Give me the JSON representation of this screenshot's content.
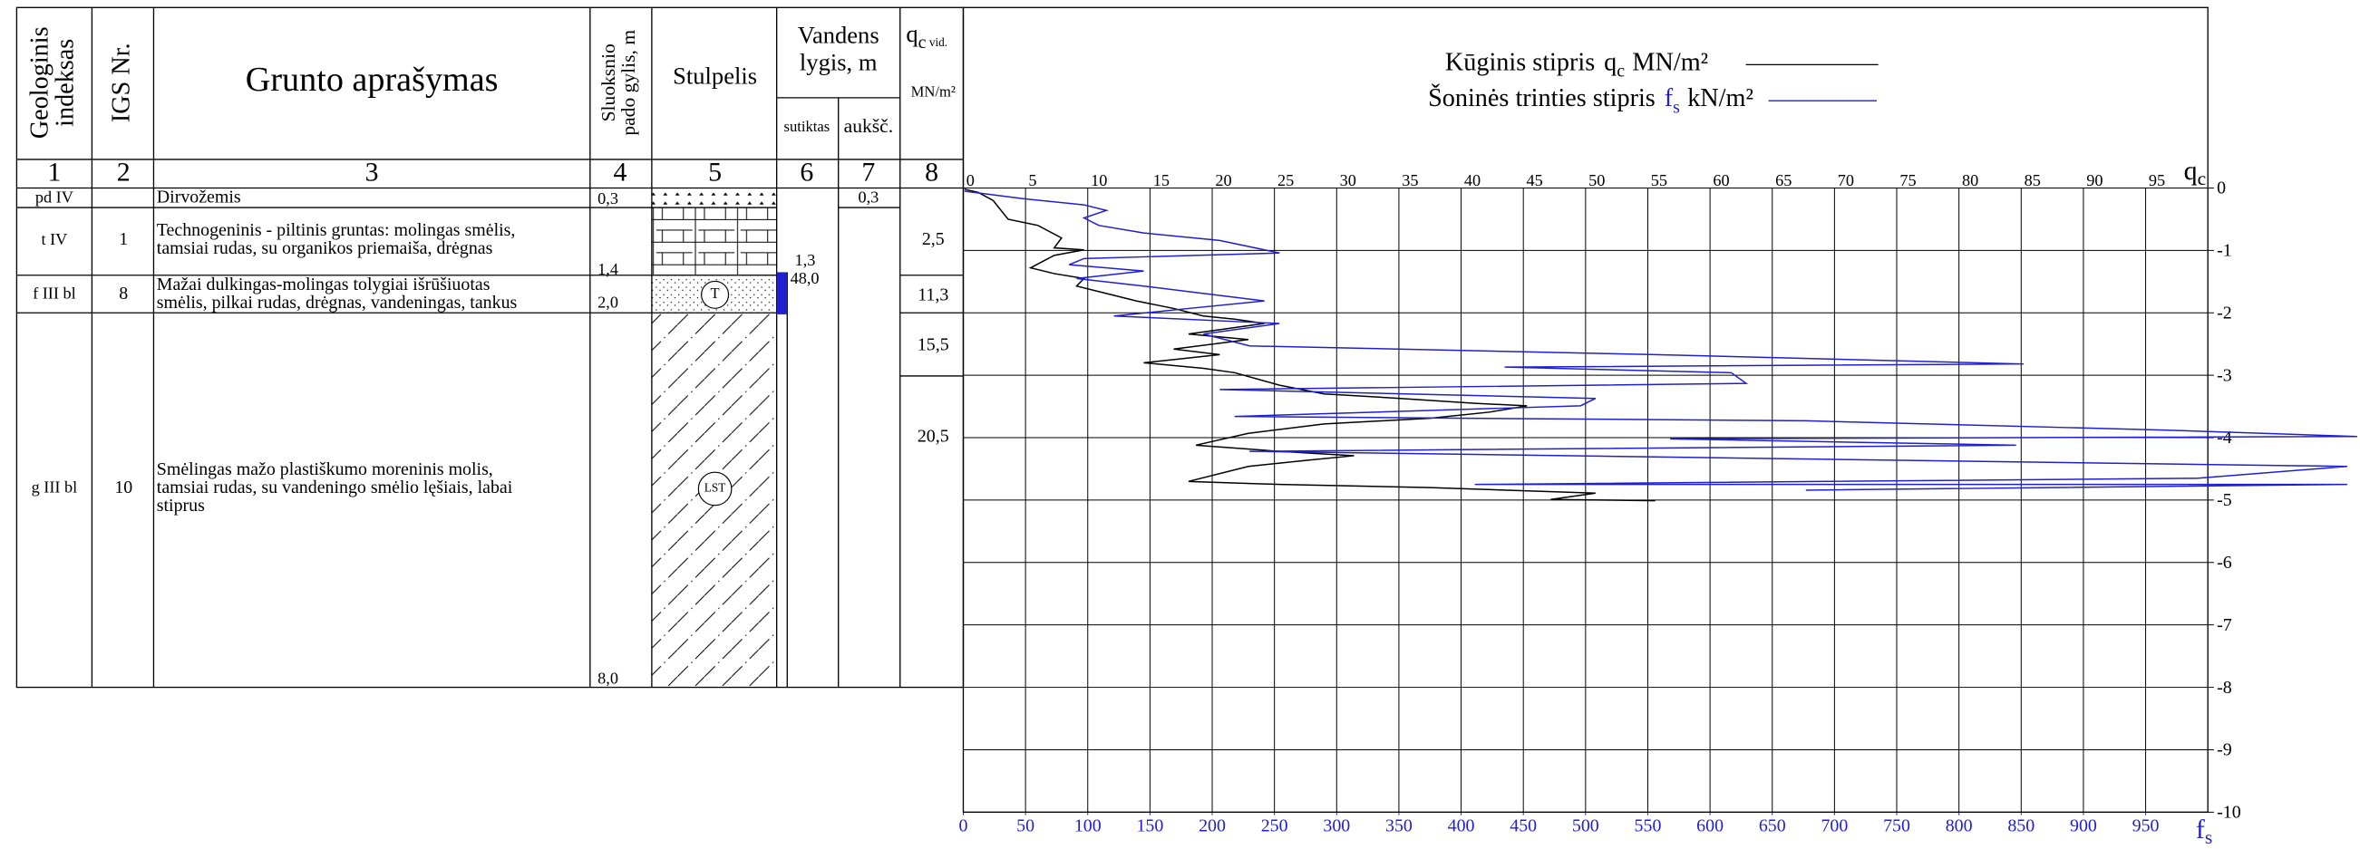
{
  "table": {
    "headers": {
      "index": [
        "Geologinis",
        "indeksas"
      ],
      "igs": "IGS Nr.",
      "description": "Grunto aprašymas",
      "depth": [
        "Sluoksnio",
        "pado gylis, m"
      ],
      "column": "Stulpelis",
      "water": [
        "Vandens",
        "lygis, m"
      ],
      "water_found": "sutiktas",
      "water_level": "aukšč.",
      "qc_symbol": "q",
      "qc_subscript": "c",
      "qc_note": "vid.",
      "qc_unit": "MN/m²"
    },
    "column_numbers": [
      "1",
      "2",
      "3",
      "4",
      "5",
      "6",
      "7",
      "8"
    ],
    "rows": [
      {
        "index": "pd IV",
        "igs": "",
        "description": [
          "Dirvožemis"
        ],
        "depth": "0,3"
      },
      {
        "index": "t IV",
        "igs": "1",
        "description": [
          "Technogeninis - piltinis gruntas: molingas smėlis,",
          "tamsiai rudas, su organikos priemaiša, drėgnas"
        ],
        "depth": "1,4"
      },
      {
        "index": "f III bl",
        "igs": "8",
        "description": [
          "Mažai dulkingas-molingas tolygiai išrūšiuotas",
          "smėlis, pilkai rudas, drėgnas, vandeningas, tankus"
        ],
        "depth": "2,0",
        "symbol": "T"
      },
      {
        "index": "g III bl",
        "igs": "10",
        "description": [
          "Smėlingas mažo plastiškumo moreninis molis,",
          "tamsiai rudas, su vandeningo smėlio lęšiais, labai",
          "stiprus"
        ],
        "depth": "8,0",
        "symbol": "LST"
      }
    ],
    "water_found": [
      "1,3",
      "48,0"
    ],
    "water_level": "0,3",
    "qc_avg": [
      "2,5",
      "11,3",
      "15,5",
      "20,5"
    ]
  },
  "chart_data": {
    "type": "line",
    "x_label": {
      "symbol": "q",
      "subscript": "c"
    },
    "x2_label": {
      "symbol": "f",
      "subscript": "s"
    },
    "xlim": [
      0,
      100
    ],
    "xticks": [
      0,
      5,
      10,
      15,
      20,
      25,
      30,
      35,
      40,
      45,
      50,
      55,
      60,
      65,
      70,
      75,
      80,
      85,
      90,
      95
    ],
    "x2lim": [
      0,
      1000
    ],
    "x2ticks": [
      0,
      50,
      100,
      150,
      200,
      250,
      300,
      350,
      400,
      450,
      500,
      550,
      600,
      650,
      700,
      750,
      800,
      850,
      900,
      950
    ],
    "ylim": [
      0,
      -10
    ],
    "yticks": [
      0,
      -1,
      -2,
      -3,
      -4,
      -5,
      -6,
      -7,
      -8,
      -9,
      -10
    ],
    "grid": true,
    "series": [
      {
        "name": "Kūginis stipris",
        "symbol": "q",
        "subscript": "c",
        "unit": "MN/m²",
        "color": "#000000",
        "x": [
          0.1,
          1.2,
          2.4,
          3.6,
          6.0,
          7.9,
          7.3,
          9.7,
          7.3,
          5.4,
          7.3,
          9.7,
          9.1,
          11.5,
          13.9,
          16.9,
          19.3,
          21.8,
          24.2,
          18.1,
          22.9,
          16.9,
          20.6,
          14.5,
          19.3,
          21.8,
          25.4,
          29.0,
          35.1,
          41.1,
          45.3,
          42.3,
          37.5,
          29.0,
          22.9,
          18.7,
          25.4,
          31.4,
          27.8,
          22.9,
          18.1,
          25.4,
          37.5,
          50.8,
          47.2,
          55.6
        ],
        "values": [
          -0.02,
          -0.07,
          -0.2,
          -0.5,
          -0.6,
          -0.8,
          -0.96,
          -0.99,
          -1.08,
          -1.28,
          -1.37,
          -1.45,
          -1.57,
          -1.69,
          -1.81,
          -1.93,
          -2.05,
          -2.1,
          -2.17,
          -2.34,
          -2.43,
          -2.58,
          -2.67,
          -2.8,
          -2.89,
          -2.96,
          -3.16,
          -3.3,
          -3.37,
          -3.45,
          -3.49,
          -3.59,
          -3.69,
          -3.78,
          -3.93,
          -4.12,
          -4.22,
          -4.29,
          -4.36,
          -4.46,
          -4.7,
          -4.75,
          -4.8,
          -4.89,
          -4.99,
          -5.01
        ]
      },
      {
        "name": "Šoninės trinties stipris",
        "symbol": "f",
        "subscript": "s",
        "unit": "kN/m²",
        "color": "#1f1fd0",
        "xaxis": "x2",
        "x": [
          1,
          48,
          97,
          115,
          97,
          109,
          145,
          206,
          254,
          97,
          85,
          145,
          91,
          145,
          193,
          242,
          181,
          121,
          254,
          193,
          230,
          556,
          852,
          435,
          617,
          629,
          206,
          508,
          496,
          218,
          677,
          967,
          1120,
          568,
          846,
          230,
          1112,
          991,
          411,
          1112,
          677
        ],
        "values": [
          -0.05,
          -0.17,
          -0.27,
          -0.36,
          -0.48,
          -0.6,
          -0.72,
          -0.84,
          -1.04,
          -1.13,
          -1.23,
          -1.33,
          -1.45,
          -1.57,
          -1.69,
          -1.81,
          -1.93,
          -2.05,
          -2.17,
          -2.34,
          -2.53,
          -2.67,
          -2.82,
          -2.87,
          -2.96,
          -3.13,
          -3.23,
          -3.37,
          -3.49,
          -3.66,
          -3.73,
          -3.88,
          -3.98,
          -4.02,
          -4.12,
          -4.22,
          -4.46,
          -4.65,
          -4.75,
          -4.75,
          -4.84
        ]
      }
    ]
  }
}
